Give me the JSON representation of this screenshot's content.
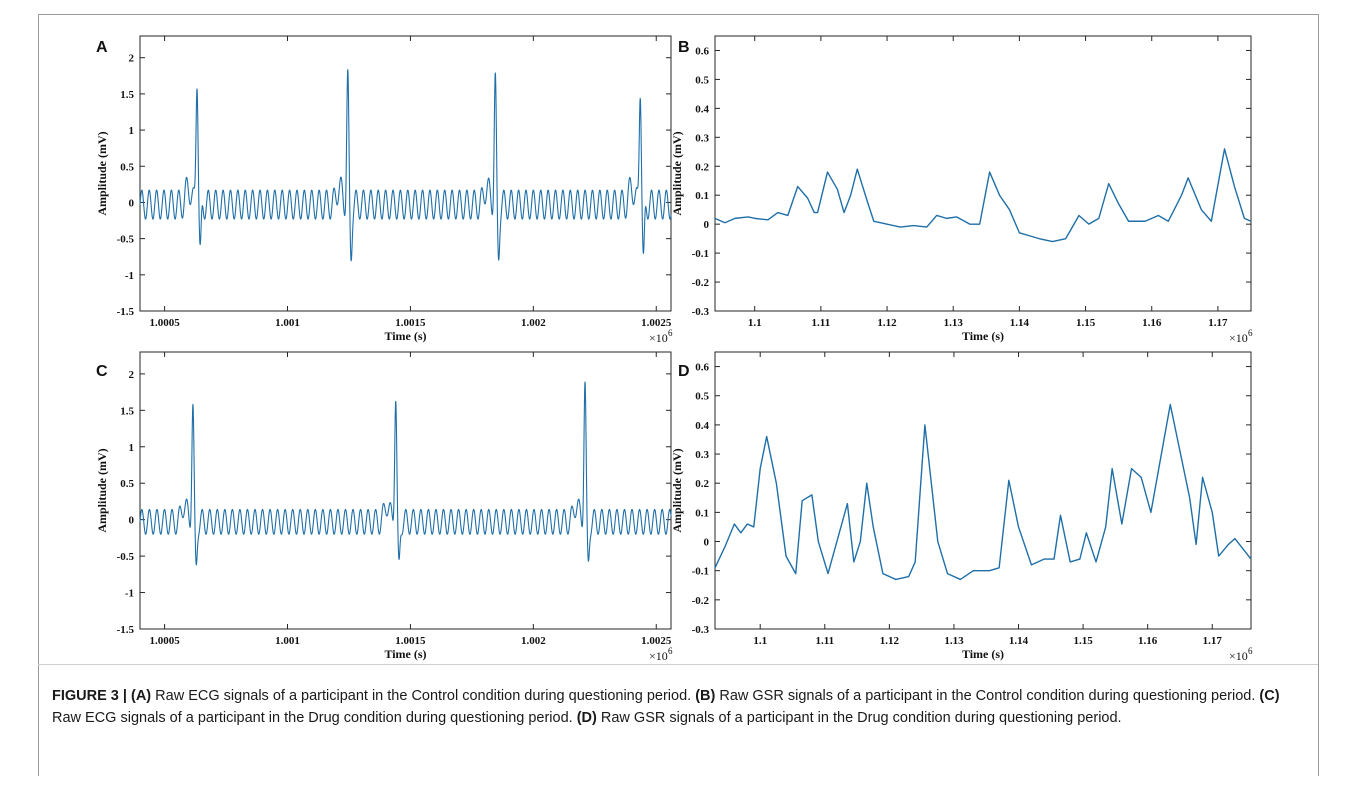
{
  "figure": {
    "caption_label": "FIGURE 3 |",
    "caption_parts": [
      {
        "key": "(A)",
        "text": " Raw ECG signals of a participant in the Control condition during questioning period. "
      },
      {
        "key": "(B)",
        "text": " Raw GSR signals of a participant in the Control condition during questioning period. "
      },
      {
        "key": "(C)",
        "text": " Raw ECG signals of a participant in the Drug condition during questioning period. "
      },
      {
        "key": "(D)",
        "text": " Raw GSR signals of a participant in the Drug condition during questioning period."
      }
    ]
  },
  "colors": {
    "line": "#1f6fa8",
    "axis": "#262626",
    "text": "#111111"
  },
  "chart_data": [
    {
      "panel": "A",
      "type": "line",
      "signal": "ecg",
      "xlabel": "Time (s)",
      "ylabel": "Amplitude (mV)",
      "x_exponent_label": "×10",
      "x_exponent": "6",
      "xlim": [
        1.0004,
        1.00256
      ],
      "ylim": [
        -1.5,
        2.3
      ],
      "xticks": [
        1.0005,
        1.001,
        1.0015,
        1.002,
        1.0025
      ],
      "xtick_labels": [
        "1.0005",
        "1.001",
        "1.0015",
        "1.002",
        "1.0025"
      ],
      "yticks": [
        -1.5,
        -1,
        -0.5,
        0,
        0.5,
        1,
        1.5,
        2
      ],
      "ytick_labels": [
        "-1.5",
        "-1",
        "-0.5",
        "0",
        "0.5",
        "1",
        "1.5",
        "2"
      ],
      "peaks": [
        {
          "x": 1.000632,
          "y": 1.75,
          "min": -0.68
        },
        {
          "x": 1.001245,
          "y": 1.68,
          "min": -0.65
        },
        {
          "x": 1.001845,
          "y": 1.67,
          "min": -0.68
        },
        {
          "x": 1.002435,
          "y": 1.62,
          "min": -0.8
        }
      ],
      "baseline_oscillation": {
        "amplitude": 0.2,
        "cycles_per_beat": 20
      }
    },
    {
      "panel": "B",
      "type": "line",
      "signal": "gsr",
      "xlabel": "Time (s)",
      "ylabel": "Amplitude (mV)",
      "x_exponent_label": "×10",
      "x_exponent": "6",
      "xlim": [
        1.094,
        1.175
      ],
      "ylim": [
        -0.3,
        0.65
      ],
      "xticks": [
        1.1,
        1.11,
        1.12,
        1.13,
        1.14,
        1.15,
        1.16,
        1.17
      ],
      "xtick_labels": [
        "1.1",
        "1.11",
        "1.12",
        "1.13",
        "1.14",
        "1.15",
        "1.16",
        "1.17"
      ],
      "yticks": [
        -0.3,
        -0.2,
        -0.1,
        0,
        0.1,
        0.2,
        0.3,
        0.4,
        0.5,
        0.6
      ],
      "ytick_labels": [
        "-0.3",
        "-0.2",
        "-0.1",
        "0",
        "0.1",
        "0.2",
        "0.3",
        "0.4",
        "0.5",
        "0.6"
      ],
      "points": [
        [
          1.094,
          0.02
        ],
        [
          1.0955,
          0.005
        ],
        [
          1.097,
          0.02
        ],
        [
          1.099,
          0.025
        ],
        [
          1.1,
          0.02
        ],
        [
          1.102,
          0.015
        ],
        [
          1.1035,
          0.04
        ],
        [
          1.105,
          0.03
        ],
        [
          1.1065,
          0.13
        ],
        [
          1.108,
          0.09
        ],
        [
          1.109,
          0.04
        ],
        [
          1.1095,
          0.04
        ],
        [
          1.111,
          0.18
        ],
        [
          1.1125,
          0.12
        ],
        [
          1.1135,
          0.04
        ],
        [
          1.1145,
          0.1
        ],
        [
          1.1155,
          0.19
        ],
        [
          1.117,
          0.08
        ],
        [
          1.118,
          0.01
        ],
        [
          1.119,
          0.005
        ],
        [
          1.12,
          0.0
        ],
        [
          1.122,
          -0.01
        ],
        [
          1.124,
          -0.005
        ],
        [
          1.126,
          -0.01
        ],
        [
          1.1275,
          0.03
        ],
        [
          1.129,
          0.02
        ],
        [
          1.1305,
          0.025
        ],
        [
          1.1325,
          0.0
        ],
        [
          1.134,
          0.0
        ],
        [
          1.1355,
          0.18
        ],
        [
          1.137,
          0.1
        ],
        [
          1.1385,
          0.05
        ],
        [
          1.14,
          -0.03
        ],
        [
          1.1415,
          -0.04
        ],
        [
          1.143,
          -0.05
        ],
        [
          1.145,
          -0.06
        ],
        [
          1.147,
          -0.05
        ],
        [
          1.149,
          0.03
        ],
        [
          1.1505,
          0.0
        ],
        [
          1.152,
          0.02
        ],
        [
          1.1535,
          0.14
        ],
        [
          1.155,
          0.07
        ],
        [
          1.1565,
          0.01
        ],
        [
          1.159,
          0.01
        ],
        [
          1.161,
          0.03
        ],
        [
          1.1625,
          0.01
        ],
        [
          1.1645,
          0.1
        ],
        [
          1.1655,
          0.16
        ],
        [
          1.1675,
          0.05
        ],
        [
          1.169,
          0.01
        ],
        [
          1.171,
          0.26
        ],
        [
          1.1725,
          0.13
        ],
        [
          1.174,
          0.02
        ],
        [
          1.175,
          0.01
        ]
      ]
    },
    {
      "panel": "C",
      "type": "line",
      "signal": "ecg",
      "xlabel": "Time (s)",
      "ylabel": "Amplitude (mV)",
      "x_exponent_label": "×10",
      "x_exponent": "6",
      "xlim": [
        1.0004,
        1.00256
      ],
      "ylim": [
        -1.5,
        2.3
      ],
      "xticks": [
        1.0005,
        1.001,
        1.0015,
        1.002,
        1.0025
      ],
      "xtick_labels": [
        "1.0005",
        "1.001",
        "1.0015",
        "1.002",
        "1.0025"
      ],
      "yticks": [
        -1.5,
        -1,
        -0.5,
        0,
        0.5,
        1,
        1.5,
        2
      ],
      "ytick_labels": [
        "-1.5",
        "-1",
        "-0.5",
        "0",
        "0.5",
        "1",
        "1.5",
        "2"
      ],
      "peaks": [
        {
          "x": 1.000615,
          "y": 1.55,
          "min": -0.6
        },
        {
          "x": 1.00144,
          "y": 1.7,
          "min": -0.62
        },
        {
          "x": 1.00221,
          "y": 1.86,
          "min": -0.55
        }
      ],
      "baseline_oscillation": {
        "amplitude": 0.17,
        "cycles_per_beat": 26
      }
    },
    {
      "panel": "D",
      "type": "line",
      "signal": "gsr",
      "xlabel": "Time (s)",
      "ylabel": "Amplitude (mV)",
      "x_exponent_label": "×10",
      "x_exponent": "6",
      "xlim": [
        1.093,
        1.176
      ],
      "ylim": [
        -0.3,
        0.65
      ],
      "xticks": [
        1.1,
        1.11,
        1.12,
        1.13,
        1.14,
        1.15,
        1.16,
        1.17
      ],
      "xtick_labels": [
        "1.1",
        "1.11",
        "1.12",
        "1.13",
        "1.14",
        "1.15",
        "1.16",
        "1.17"
      ],
      "yticks": [
        -0.3,
        -0.2,
        -0.1,
        0,
        0.1,
        0.2,
        0.3,
        0.4,
        0.5,
        0.6
      ],
      "ytick_labels": [
        "-0.3",
        "-0.2",
        "-0.1",
        "0",
        "0.1",
        "0.2",
        "0.3",
        "0.4",
        "0.5",
        "0.6"
      ],
      "points": [
        [
          1.093,
          -0.09
        ],
        [
          1.0945,
          -0.02
        ],
        [
          1.096,
          0.06
        ],
        [
          1.097,
          0.03
        ],
        [
          1.098,
          0.06
        ],
        [
          1.099,
          0.05
        ],
        [
          1.1,
          0.25
        ],
        [
          1.101,
          0.36
        ],
        [
          1.1025,
          0.2
        ],
        [
          1.104,
          -0.05
        ],
        [
          1.1055,
          -0.11
        ],
        [
          1.1065,
          0.14
        ],
        [
          1.108,
          0.16
        ],
        [
          1.109,
          0.0
        ],
        [
          1.1105,
          -0.11
        ],
        [
          1.1125,
          0.05
        ],
        [
          1.1135,
          0.13
        ],
        [
          1.1145,
          -0.07
        ],
        [
          1.1155,
          0.0
        ],
        [
          1.1165,
          0.2
        ],
        [
          1.1175,
          0.05
        ],
        [
          1.119,
          -0.11
        ],
        [
          1.121,
          -0.13
        ],
        [
          1.123,
          -0.12
        ],
        [
          1.124,
          -0.07
        ],
        [
          1.1255,
          0.4
        ],
        [
          1.1275,
          0.0
        ],
        [
          1.129,
          -0.11
        ],
        [
          1.131,
          -0.13
        ],
        [
          1.133,
          -0.1
        ],
        [
          1.1355,
          -0.1
        ],
        [
          1.137,
          -0.09
        ],
        [
          1.1385,
          0.21
        ],
        [
          1.14,
          0.05
        ],
        [
          1.142,
          -0.08
        ],
        [
          1.144,
          -0.06
        ],
        [
          1.1455,
          -0.06
        ],
        [
          1.1465,
          0.09
        ],
        [
          1.148,
          -0.07
        ],
        [
          1.1495,
          -0.06
        ],
        [
          1.1505,
          0.03
        ],
        [
          1.152,
          -0.07
        ],
        [
          1.1535,
          0.05
        ],
        [
          1.1545,
          0.25
        ],
        [
          1.156,
          0.06
        ],
        [
          1.1575,
          0.25
        ],
        [
          1.159,
          0.22
        ],
        [
          1.1605,
          0.1
        ],
        [
          1.1635,
          0.47
        ],
        [
          1.1665,
          0.15
        ],
        [
          1.1675,
          -0.01
        ],
        [
          1.1685,
          0.22
        ],
        [
          1.17,
          0.1
        ],
        [
          1.171,
          -0.05
        ],
        [
          1.1725,
          -0.01
        ],
        [
          1.1735,
          0.01
        ],
        [
          1.176,
          -0.06
        ]
      ]
    }
  ]
}
